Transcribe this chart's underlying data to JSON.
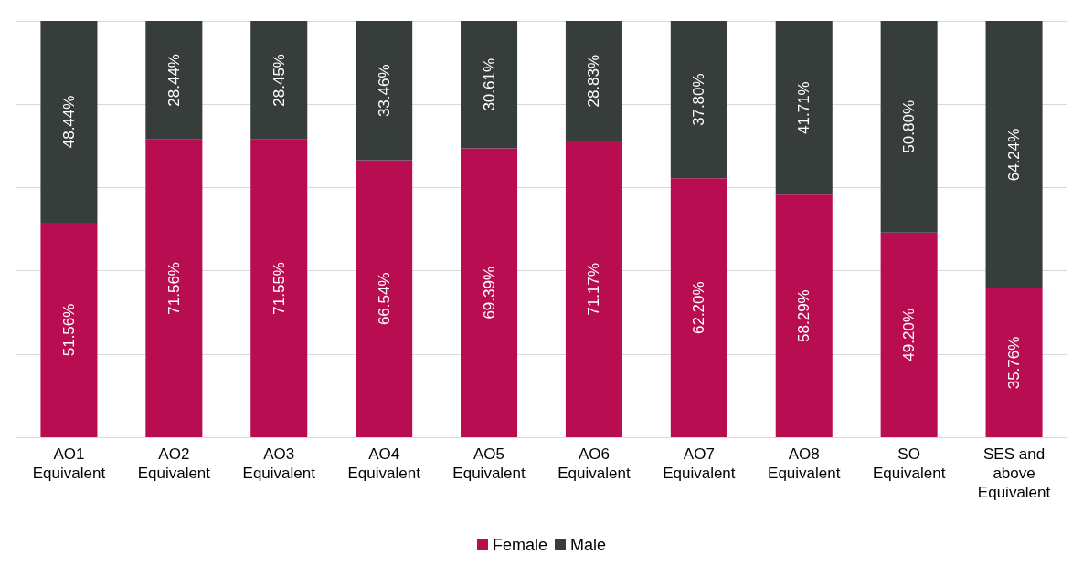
{
  "chart_data": {
    "type": "bar",
    "stacked": true,
    "categories": [
      "AO1\nEquivalent",
      "AO2\nEquivalent",
      "AO3\nEquivalent",
      "AO4\nEquivalent",
      "AO5\nEquivalent",
      "AO6\nEquivalent",
      "AO7\nEquivalent",
      "AO8\nEquivalent",
      "SO\nEquivalent",
      "SES and\nabove\nEquivalent"
    ],
    "series": [
      {
        "name": "Female",
        "color": "#b80d50",
        "values": [
          51.56,
          71.56,
          71.55,
          66.54,
          69.39,
          71.17,
          62.2,
          58.29,
          49.2,
          35.76
        ],
        "value_labels": [
          "51.56%",
          "71.56%",
          "71.55%",
          "66.54%",
          "69.39%",
          "71.17%",
          "62.20%",
          "58.29%",
          "49.20%",
          "35.76%"
        ]
      },
      {
        "name": "Male",
        "color": "#363d3a",
        "values": [
          48.44,
          28.44,
          28.45,
          33.46,
          30.61,
          28.83,
          37.8,
          41.71,
          50.8,
          64.24
        ],
        "value_labels": [
          "48.44%",
          "28.44%",
          "28.45%",
          "33.46%",
          "30.61%",
          "28.83%",
          "37.80%",
          "41.71%",
          "50.80%",
          "64.24%"
        ]
      }
    ],
    "ylim": [
      0,
      100
    ],
    "yticks": [
      {
        "value": 0,
        "label": null
      },
      {
        "value": 20,
        "label": null
      },
      {
        "value": 40,
        "label": null
      },
      {
        "value": 60,
        "label": null
      },
      {
        "value": 80,
        "label": null
      },
      {
        "value": 100,
        "label": null
      }
    ],
    "tick_labels": "x",
    "grid": "y",
    "legend": "bottom"
  }
}
